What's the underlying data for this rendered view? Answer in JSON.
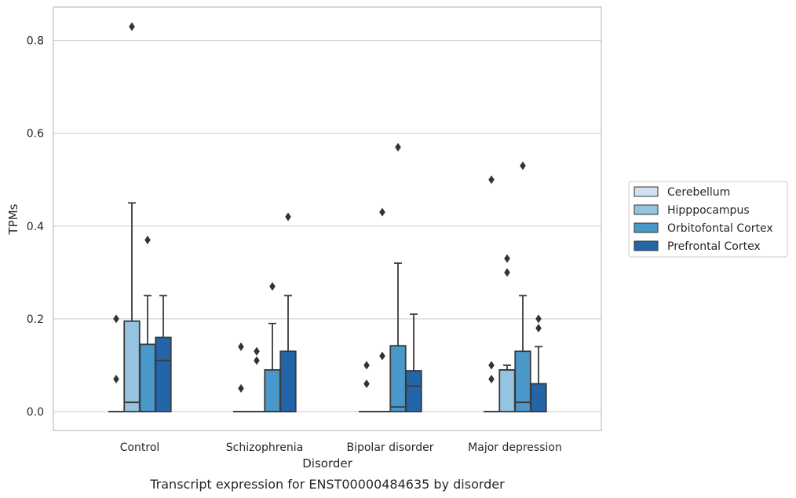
{
  "caption": "Transcript expression for ENST00000484635 by disorder",
  "chart_data": {
    "type": "box",
    "title": "",
    "xlabel": "Disorder",
    "ylabel": "TPMs",
    "ylim": [
      -0.04,
      0.873
    ],
    "yticks": [
      0.0,
      0.2,
      0.4,
      0.6,
      0.8
    ],
    "ytick_labels": [
      "0.0",
      "0.2",
      "0.4",
      "0.6",
      "0.8"
    ],
    "grid": "horizontal",
    "legend_position": "right",
    "categories": [
      "Control",
      "Schizophrenia",
      "Bipolar disorder",
      "Major depression"
    ],
    "series": [
      {
        "name": "Cerebellum",
        "color": "#d0e1f2",
        "boxes": [
          {
            "q1": 0,
            "median": 0,
            "q3": 0,
            "whisker_low": 0,
            "whisker_high": 0,
            "outliers": [
              0.07,
              0.2
            ]
          },
          {
            "q1": 0,
            "median": 0,
            "q3": 0,
            "whisker_low": 0,
            "whisker_high": 0,
            "outliers": [
              0.05,
              0.14
            ]
          },
          {
            "q1": 0,
            "median": 0,
            "q3": 0,
            "whisker_low": 0,
            "whisker_high": 0,
            "outliers": [
              0.06,
              0.1
            ]
          },
          {
            "q1": 0,
            "median": 0,
            "q3": 0,
            "whisker_low": 0,
            "whisker_high": 0,
            "outliers": [
              0.07,
              0.1,
              0.5
            ]
          }
        ]
      },
      {
        "name": "Hipppocampus",
        "color": "#94c4df",
        "boxes": [
          {
            "q1": 0,
            "median": 0.02,
            "q3": 0.195,
            "whisker_low": 0,
            "whisker_high": 0.45,
            "outliers": [
              0.83
            ]
          },
          {
            "q1": 0,
            "median": 0,
            "q3": 0,
            "whisker_low": 0,
            "whisker_high": 0,
            "outliers": [
              0.11,
              0.13
            ]
          },
          {
            "q1": 0,
            "median": 0,
            "q3": 0,
            "whisker_low": 0,
            "whisker_high": 0,
            "outliers": [
              0.12,
              0.43
            ]
          },
          {
            "q1": 0,
            "median": 0.09,
            "q3": 0.09,
            "whisker_low": 0,
            "whisker_high": 0.1,
            "outliers": [
              0.3,
              0.33
            ]
          }
        ]
      },
      {
        "name": "Orbitofontal Cortex",
        "color": "#4a98c9",
        "boxes": [
          {
            "q1": 0,
            "median": 0,
            "q3": 0.145,
            "whisker_low": 0,
            "whisker_high": 0.25,
            "outliers": [
              0.37
            ]
          },
          {
            "q1": 0,
            "median": 0,
            "q3": 0.09,
            "whisker_low": 0,
            "whisker_high": 0.19,
            "outliers": [
              0.27
            ]
          },
          {
            "q1": 0,
            "median": 0.01,
            "q3": 0.142,
            "whisker_low": 0,
            "whisker_high": 0.32,
            "outliers": [
              0.57
            ]
          },
          {
            "q1": 0,
            "median": 0.02,
            "q3": 0.13,
            "whisker_low": 0,
            "whisker_high": 0.25,
            "outliers": [
              0.53
            ]
          }
        ]
      },
      {
        "name": "Prefrontal Cortex",
        "color": "#2464a8",
        "boxes": [
          {
            "q1": 0,
            "median": 0.11,
            "q3": 0.16,
            "whisker_low": 0,
            "whisker_high": 0.25,
            "outliers": []
          },
          {
            "q1": 0,
            "median": 0,
            "q3": 0.13,
            "whisker_low": 0,
            "whisker_high": 0.25,
            "outliers": [
              0.42
            ]
          },
          {
            "q1": 0,
            "median": 0.055,
            "q3": 0.088,
            "whisker_low": 0,
            "whisker_high": 0.21,
            "outliers": []
          },
          {
            "q1": 0,
            "median": 0,
            "q3": 0.06,
            "whisker_low": 0,
            "whisker_high": 0.14,
            "outliers": [
              0.18,
              0.2
            ]
          }
        ]
      }
    ]
  }
}
